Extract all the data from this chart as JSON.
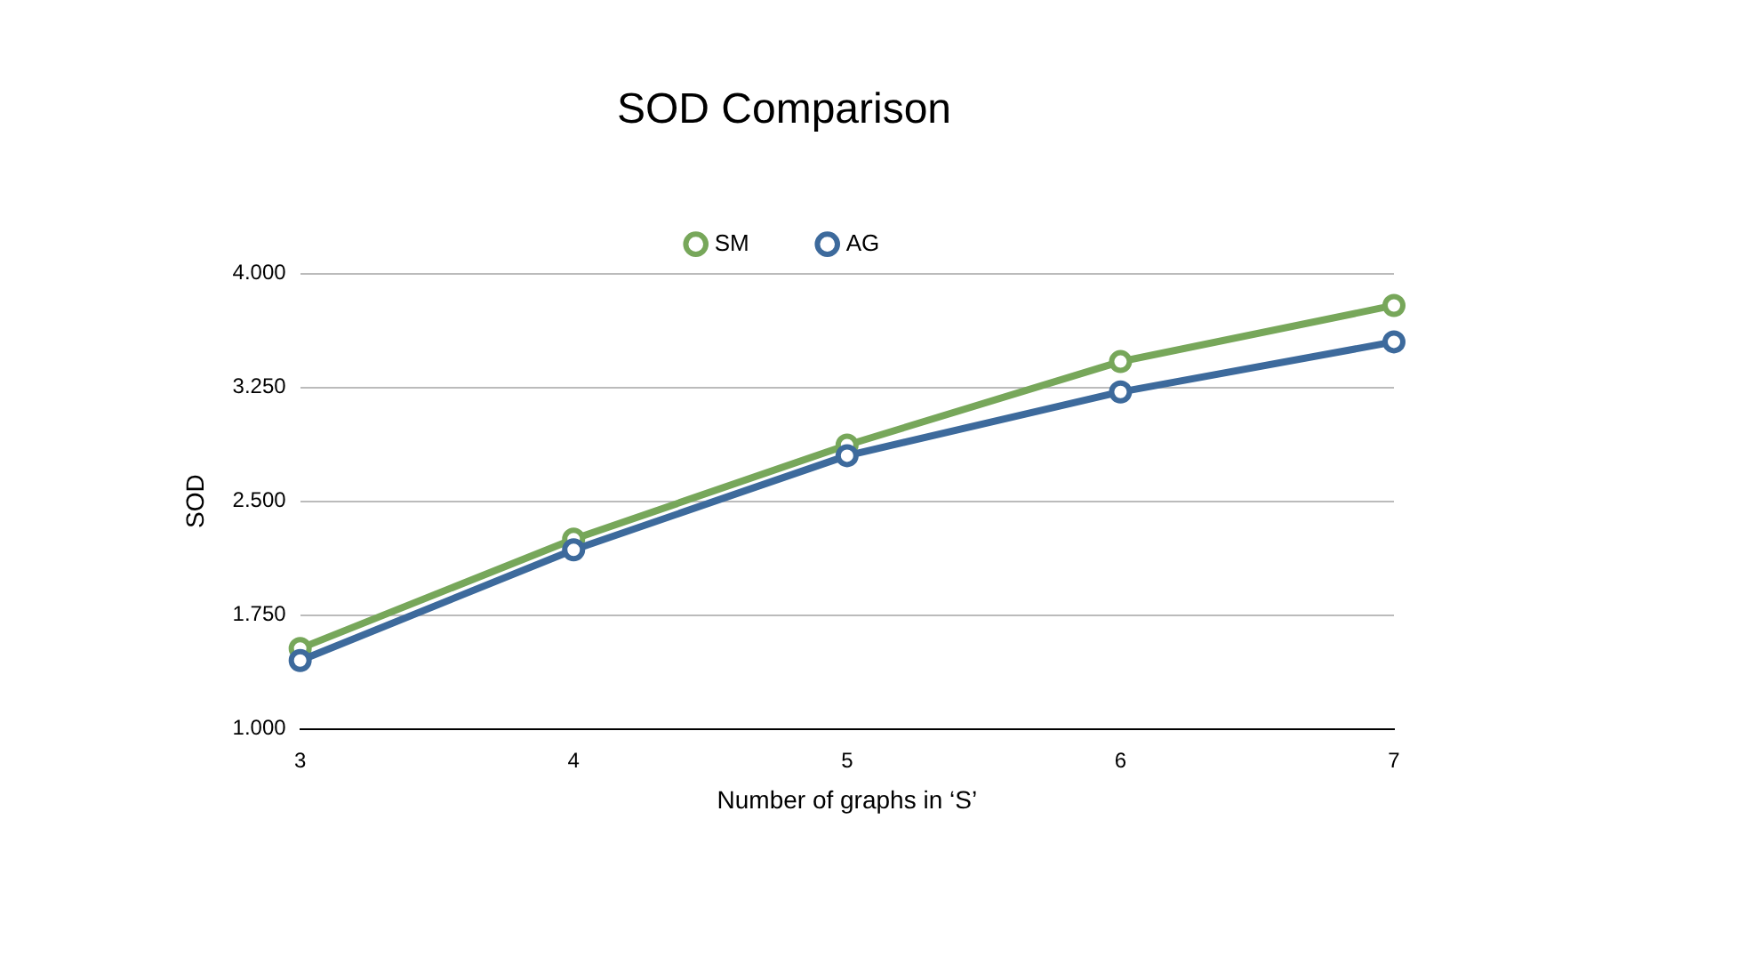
{
  "chart_data": {
    "type": "line",
    "title": "SOD Comparison",
    "xlabel": "Number of graphs in ‘S’",
    "ylabel": "SOD",
    "x": [
      3,
      4,
      5,
      6,
      7
    ],
    "xlim": [
      3,
      7
    ],
    "xticks": [
      3,
      4,
      5,
      6,
      7
    ],
    "ylim": [
      1,
      4
    ],
    "yticks": [
      {
        "value": 1,
        "label": "1.000"
      },
      {
        "value": 1.75,
        "label": "1.750"
      },
      {
        "value": 2.5,
        "label": "2.500"
      },
      {
        "value": 3.25,
        "label": "3.250"
      },
      {
        "value": 4,
        "label": "4.000"
      }
    ],
    "series": [
      {
        "name": "SM",
        "color": "#77a75a",
        "values": [
          1.53,
          2.25,
          2.87,
          3.42,
          3.79
        ]
      },
      {
        "name": "AG",
        "color": "#3d6a9c",
        "values": [
          1.45,
          2.18,
          2.8,
          3.22,
          3.55
        ]
      }
    ],
    "grid": "y",
    "legend": "top",
    "marker": "circle",
    "line_style": "solid"
  }
}
